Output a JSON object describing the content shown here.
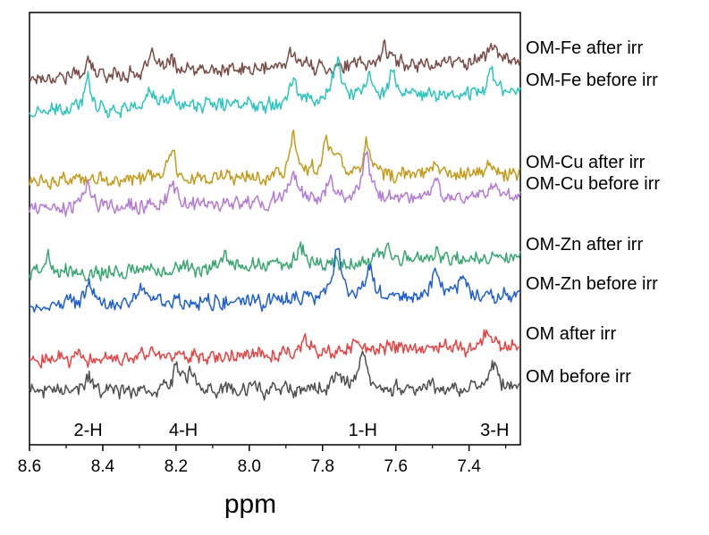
{
  "chart_data": {
    "type": "line",
    "title": "",
    "xlabel": "ppm",
    "ylabel": "",
    "xlim": [
      8.6,
      7.26
    ],
    "x_reversed": true,
    "grid": false,
    "x_ticks": [
      "8.6",
      "8.4",
      "8.2",
      "8.0",
      "7.8",
      "7.6",
      "7.4"
    ],
    "x_tick_values": [
      8.6,
      8.4,
      8.2,
      8.0,
      7.8,
      7.6,
      7.4
    ],
    "peak_annotations": [
      {
        "text": "2-H",
        "ppm": 8.44
      },
      {
        "text": "4-H",
        "ppm": 8.18
      },
      {
        "text": "1-H",
        "ppm": 7.69
      },
      {
        "text": "3-H",
        "ppm": 7.33
      }
    ],
    "series": [
      {
        "name": "OM-Fe after irr",
        "color": "#7a4a44",
        "offset": 9.2,
        "slope": 0.5,
        "peaks": [
          [
            8.44,
            0.35
          ],
          [
            8.26,
            0.5
          ],
          [
            8.21,
            0.3
          ],
          [
            7.88,
            0.55
          ],
          [
            7.63,
            0.55
          ],
          [
            7.34,
            0.5
          ]
        ]
      },
      {
        "name": "OM-Fe before irr",
        "color": "#2ec4c0",
        "offset": 8.2,
        "slope": 0.6,
        "peaks": [
          [
            8.44,
            0.9
          ],
          [
            8.27,
            0.5
          ],
          [
            8.21,
            0.35
          ],
          [
            7.88,
            0.6
          ],
          [
            7.76,
            1.2
          ],
          [
            7.67,
            0.6
          ],
          [
            7.61,
            0.7
          ],
          [
            7.34,
            0.7
          ]
        ]
      },
      {
        "name": "OM-Cu after irr",
        "color": "#c49a1a",
        "offset": 6.3,
        "slope": 0.2,
        "peaks": [
          [
            8.21,
            0.8
          ],
          [
            7.88,
            1.3
          ],
          [
            7.79,
            1.0
          ],
          [
            7.76,
            0.6
          ],
          [
            7.68,
            1.0
          ],
          [
            7.49,
            0.3
          ],
          [
            7.34,
            0.3
          ]
        ]
      },
      {
        "name": "OM-Cu before irr",
        "color": "#b57ad6",
        "offset": 5.5,
        "slope": 0.4,
        "peaks": [
          [
            8.44,
            0.7
          ],
          [
            8.21,
            0.6
          ],
          [
            7.88,
            0.9
          ],
          [
            7.78,
            0.6
          ],
          [
            7.68,
            1.3
          ],
          [
            7.49,
            0.5
          ],
          [
            7.34,
            0.3
          ]
        ]
      },
      {
        "name": "OM-Zn after irr",
        "color": "#3aa672",
        "offset": 3.7,
        "slope": 0.5,
        "peaks": [
          [
            8.55,
            0.5
          ],
          [
            8.07,
            0.4
          ],
          [
            7.86,
            0.4
          ],
          [
            7.62,
            0.3
          ],
          [
            7.49,
            0.2
          ]
        ]
      },
      {
        "name": "OM-Zn before irr",
        "color": "#1f5fd1",
        "offset": 2.8,
        "slope": 0.3,
        "peaks": [
          [
            8.44,
            0.6
          ],
          [
            8.29,
            0.5
          ],
          [
            7.76,
            1.6
          ],
          [
            7.67,
            0.9
          ],
          [
            7.49,
            0.8
          ],
          [
            7.42,
            0.6
          ]
        ]
      },
      {
        "name": "OM after irr",
        "color": "#e64242",
        "offset": 1.3,
        "slope": 0.4,
        "peaks": [
          [
            7.85,
            0.3
          ],
          [
            7.7,
            0.2
          ],
          [
            7.35,
            0.3
          ]
        ]
      },
      {
        "name": "OM before irr",
        "color": "#4f4f4f",
        "offset": 0.4,
        "slope": 0.1,
        "peaks": [
          [
            8.44,
            0.4
          ],
          [
            8.2,
            0.7
          ],
          [
            8.16,
            0.4
          ],
          [
            7.76,
            0.4
          ],
          [
            7.69,
            1.1
          ],
          [
            7.51,
            0.3
          ],
          [
            7.33,
            0.7
          ]
        ]
      }
    ]
  }
}
